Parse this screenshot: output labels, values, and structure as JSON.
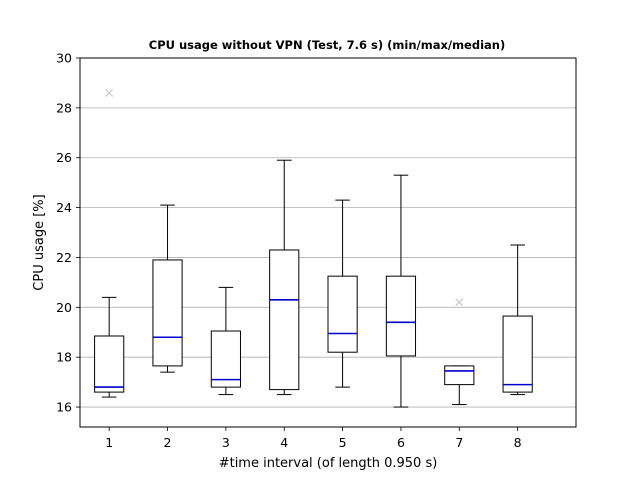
{
  "chart_data": {
    "type": "box",
    "title": "CPU usage without VPN (Test, 7.6 s) (min/max/median)",
    "xlabel": "#time interval (of length 0.950 s)",
    "ylabel": "CPU usage [%]",
    "ylim": [
      15.2,
      30.0
    ],
    "y_ticks": [
      16,
      18,
      20,
      22,
      24,
      26,
      28,
      30
    ],
    "categories": [
      "1",
      "2",
      "3",
      "4",
      "5",
      "6",
      "7",
      "8"
    ],
    "grid": "horizontal",
    "median_color": "#0000cc",
    "box_color": "#000000",
    "outlier_color": "#c8c8c8",
    "boxes": [
      {
        "category": "1",
        "whisker_low": 16.4,
        "q1": 16.6,
        "median": 16.8,
        "q3": 18.85,
        "whisker_high": 20.4,
        "outliers": [
          28.6
        ]
      },
      {
        "category": "2",
        "whisker_low": 17.4,
        "q1": 17.65,
        "median": 18.8,
        "q3": 21.9,
        "whisker_high": 24.1,
        "outliers": []
      },
      {
        "category": "3",
        "whisker_low": 16.5,
        "q1": 16.8,
        "median": 17.1,
        "q3": 19.05,
        "whisker_high": 20.8,
        "outliers": []
      },
      {
        "category": "4",
        "whisker_low": 16.5,
        "q1": 16.7,
        "median": 20.3,
        "q3": 22.3,
        "whisker_high": 25.9,
        "outliers": []
      },
      {
        "category": "5",
        "whisker_low": 16.8,
        "q1": 18.2,
        "median": 18.95,
        "q3": 21.25,
        "whisker_high": 24.3,
        "outliers": []
      },
      {
        "category": "6",
        "whisker_low": 16.0,
        "q1": 18.05,
        "median": 19.4,
        "q3": 21.25,
        "whisker_high": 25.3,
        "outliers": []
      },
      {
        "category": "7",
        "whisker_low": 16.1,
        "q1": 16.9,
        "median": 17.45,
        "q3": 17.65,
        "whisker_high": 17.65,
        "outliers": [
          20.2
        ]
      },
      {
        "category": "8",
        "whisker_low": 16.5,
        "q1": 16.6,
        "median": 16.9,
        "q3": 19.65,
        "whisker_high": 22.5,
        "outliers": []
      }
    ]
  }
}
